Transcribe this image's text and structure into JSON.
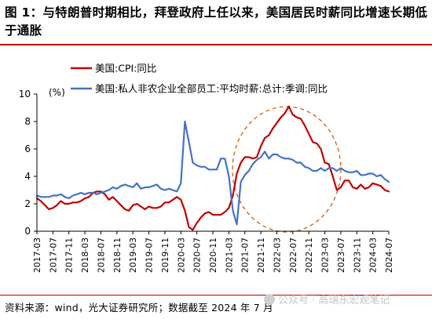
{
  "title": "图 1：与特朗普时期相比，拜登政府上任以来，美国居民时薪同比增速长期低于通胀",
  "source_note": "资料来源：wind，光大证券研究所；数据截至 2024 年 7 月",
  "watermark": {
    "text": "公众号 · 高瑞东宏观笔记",
    "icon": "wechat-icon"
  },
  "chart_data": {
    "type": "line",
    "y_unit": "(%)",
    "ylim": [
      0,
      10
    ],
    "yticks": [
      0,
      2,
      4,
      6,
      8,
      10
    ],
    "x_tick_labels": [
      "2017-03",
      "2017-07",
      "2017-11",
      "2018-03",
      "2018-07",
      "2018-11",
      "2019-03",
      "2019-07",
      "2019-11",
      "2020-03",
      "2020-07",
      "2020-11",
      "2021-03",
      "2021-07",
      "2021-11",
      "2022-03",
      "2022-07",
      "2022-11",
      "2023-03",
      "2023-07",
      "2023-11",
      "2024-03",
      "2024-07"
    ],
    "x_start": "2017-03",
    "x_end": "2024-07",
    "grid": false,
    "legend_position": "top-left",
    "annotation": {
      "type": "dashed-ellipse",
      "color": "#d2691e",
      "highlights": "2021-03 to 2023-07"
    },
    "series": [
      {
        "name": "美国:CPI:同比",
        "color": "#c00000",
        "values": [
          2.4,
          2.2,
          1.9,
          1.6,
          1.7,
          1.9,
          2.2,
          2.0,
          2.0,
          2.1,
          2.1,
          2.2,
          2.4,
          2.5,
          2.8,
          2.9,
          2.9,
          2.7,
          2.3,
          2.5,
          2.2,
          1.9,
          1.6,
          1.5,
          1.9,
          2.0,
          1.8,
          1.6,
          1.8,
          1.7,
          1.7,
          1.8,
          2.1,
          2.1,
          2.3,
          2.5,
          2.3,
          1.5,
          0.3,
          0.1,
          0.6,
          1.0,
          1.3,
          1.4,
          1.2,
          1.2,
          1.2,
          1.4,
          1.7,
          2.6,
          4.2,
          5.0,
          5.4,
          5.4,
          5.3,
          5.4,
          6.2,
          6.8,
          7.0,
          7.5,
          7.9,
          8.3,
          8.6,
          9.1,
          8.5,
          8.3,
          8.2,
          7.7,
          7.1,
          6.5,
          6.4,
          6.0,
          5.0,
          4.9,
          4.0,
          3.0,
          3.2,
          3.7,
          3.7,
          3.2,
          3.1,
          3.4,
          3.1,
          3.2,
          3.5,
          3.4,
          3.3,
          3.0,
          2.9
        ]
      },
      {
        "name": "美国:私人非农企业全部员工:平均时薪:总计:季调:同比",
        "color": "#4472c4",
        "values": [
          2.6,
          2.5,
          2.5,
          2.5,
          2.6,
          2.6,
          2.7,
          2.5,
          2.4,
          2.6,
          2.7,
          2.8,
          2.7,
          2.8,
          2.8,
          2.7,
          2.8,
          2.9,
          3.0,
          3.2,
          3.1,
          3.3,
          3.4,
          3.3,
          3.2,
          3.5,
          3.1,
          3.2,
          3.2,
          3.3,
          3.4,
          3.1,
          3.0,
          3.1,
          3.0,
          2.9,
          3.5,
          8.0,
          6.5,
          5.0,
          4.8,
          4.7,
          4.7,
          4.5,
          4.5,
          4.5,
          5.3,
          5.3,
          4.0,
          1.5,
          0.5,
          3.6,
          4.1,
          4.4,
          4.9,
          5.2,
          5.4,
          5.8,
          5.3,
          5.6,
          5.6,
          5.4,
          5.3,
          5.3,
          5.2,
          5.0,
          5.0,
          4.7,
          4.6,
          4.4,
          4.4,
          4.6,
          4.4,
          4.6,
          4.6,
          4.4,
          4.6,
          4.4,
          4.3,
          4.3,
          4.4,
          4.1,
          4.1,
          4.2,
          4.2,
          4.0,
          4.1,
          3.8,
          3.6
        ]
      }
    ]
  }
}
